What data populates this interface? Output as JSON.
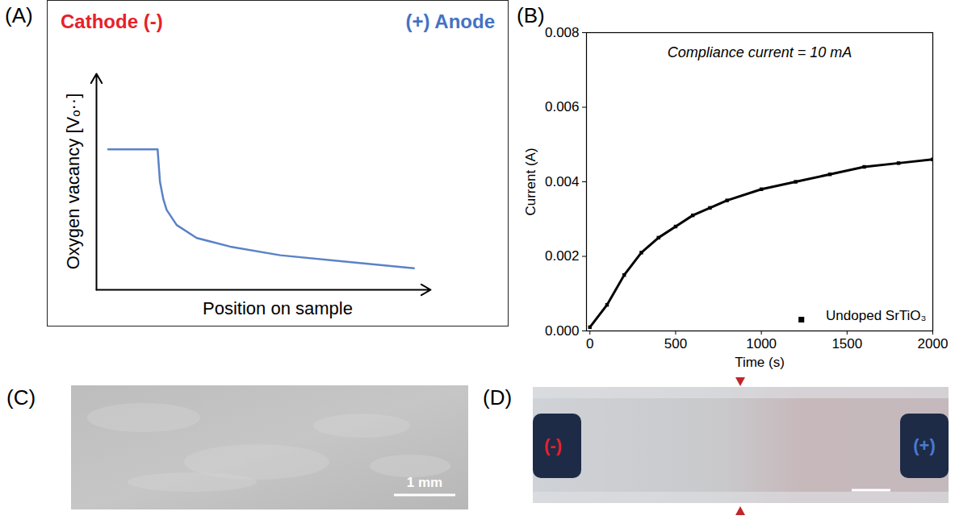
{
  "chart_data": [
    {
      "panel_label": "(A)",
      "type": "line",
      "x_label": "Position on sample",
      "y_label": "Oxygen vacancy [Vₒ··]",
      "annotations": [
        {
          "text": "Cathode (-)",
          "color": "#e8202a"
        },
        {
          "text": "(+) Anode",
          "color": "#4472c4"
        }
      ],
      "x": [
        0.035,
        0.183,
        0.19,
        0.2,
        0.21,
        0.24,
        0.3,
        0.4,
        0.55,
        0.75,
        0.95
      ],
      "values": [
        0.65,
        0.65,
        0.5,
        0.42,
        0.37,
        0.3,
        0.24,
        0.2,
        0.16,
        0.13,
        0.1
      ],
      "color": "#5a82c8",
      "xlim": [
        0,
        1
      ],
      "ylim": [
        0,
        1
      ],
      "tick_labels": false
    },
    {
      "panel_label": "(B)",
      "type": "line",
      "annotation": "Compliance current = 10 mA",
      "x_label": "Time (s)",
      "y_label": "Current (A)",
      "x": [
        0,
        100,
        200,
        300,
        400,
        500,
        600,
        700,
        800,
        1000,
        1200,
        1400,
        1600,
        1800,
        2000
      ],
      "series": [
        {
          "name": "Undoped SrTiO₃",
          "color": "#000000",
          "marker": "square",
          "values": [
            0.0001,
            0.0007,
            0.0015,
            0.0021,
            0.0025,
            0.0028,
            0.0031,
            0.0033,
            0.0035,
            0.0038,
            0.004,
            0.0042,
            0.0044,
            0.0045,
            0.0046
          ]
        }
      ],
      "xlim": [
        -20,
        2000
      ],
      "ylim": [
        0,
        0.008
      ],
      "xticks": [
        0,
        500,
        1000,
        1500,
        2000
      ],
      "yticks": [
        {
          "value": 0,
          "label": "0.000"
        },
        {
          "value": 0.002,
          "label": "0.002"
        },
        {
          "value": 0.004,
          "label": "0.004"
        },
        {
          "value": 0.006,
          "label": "0.006"
        },
        {
          "value": 0.008,
          "label": "0.008"
        }
      ],
      "legend": "bottom-right"
    }
  ],
  "photos": [
    {
      "panel_label": "(C)",
      "scale_bar": "1 mm"
    },
    {
      "panel_label": "(D)",
      "electrodes": [
        {
          "label": "(-)",
          "color": "#e8202a"
        },
        {
          "label": "(+)",
          "color": "#4a7ad0"
        }
      ]
    }
  ]
}
